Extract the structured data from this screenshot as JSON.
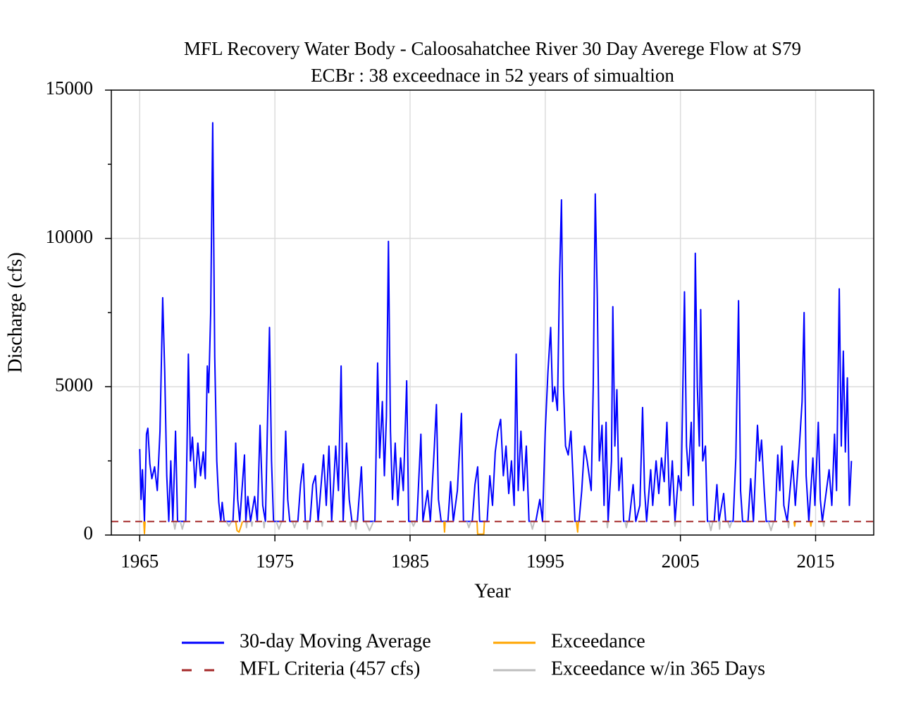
{
  "chart_data": {
    "type": "line",
    "title": "MFL Recovery Water Body - Caloosahatchee River 30 Day Averege Flow at S79",
    "subtitle": "ECBr : 38 exceednace in 52 years of simualtion",
    "x_label": "Year",
    "y_label": "Discharge (cfs)",
    "xlim": [
      1962.9,
      2019.3
    ],
    "ylim": [
      0,
      15000
    ],
    "xticks": [
      1965,
      1975,
      1985,
      1995,
      2005,
      2015
    ],
    "yticks": [
      0,
      5000,
      10000,
      15000
    ],
    "yminorticks": [
      2500,
      7500,
      12500
    ],
    "grid": true,
    "legend": "bottom",
    "threshold": {
      "name": "MFL Criteria (457 cfs)",
      "value": 457,
      "color": "#a52a2a"
    },
    "series": [
      {
        "name": "30-day Moving Average",
        "color": "#0000ff",
        "x": [
          1965.0,
          1965.1,
          1965.2,
          1965.35,
          1965.5,
          1965.6,
          1965.75,
          1965.9,
          1966.1,
          1966.3,
          1966.5,
          1966.7,
          1966.85,
          1967.0,
          1967.15,
          1967.3,
          1967.45,
          1967.65,
          1967.8,
          1968.4,
          1968.5,
          1968.6,
          1968.75,
          1968.9,
          1969.1,
          1969.3,
          1969.5,
          1969.7,
          1969.85,
          1970.0,
          1970.1,
          1970.25,
          1970.4,
          1970.55,
          1970.7,
          1970.85,
          1971.0,
          1971.1,
          1971.25,
          1971.9,
          1972.0,
          1972.1,
          1972.25,
          1972.4,
          1972.75,
          1972.85,
          1973.0,
          1973.2,
          1973.5,
          1973.7,
          1973.9,
          1974.1,
          1974.3,
          1974.6,
          1974.75,
          1974.9,
          1975.6,
          1975.8,
          1975.95,
          1976.1,
          1976.7,
          1976.9,
          1977.1,
          1977.25,
          1977.6,
          1977.8,
          1978.0,
          1978.2,
          1978.6,
          1978.8,
          1979.0,
          1979.2,
          1979.5,
          1979.7,
          1979.9,
          1980.05,
          1980.3,
          1980.5,
          1980.7,
          1981.1,
          1981.4,
          1981.55,
          1982.4,
          1982.6,
          1982.75,
          1982.95,
          1983.1,
          1983.25,
          1983.4,
          1983.55,
          1983.7,
          1983.9,
          1984.1,
          1984.3,
          1984.5,
          1984.75,
          1984.9,
          1985.5,
          1985.8,
          1985.95,
          1986.3,
          1986.5,
          1986.8,
          1986.95,
          1987.1,
          1987.3,
          1987.8,
          1988.0,
          1988.2,
          1988.5,
          1988.8,
          1988.95,
          1989.6,
          1989.8,
          1990.0,
          1990.15,
          1990.7,
          1990.9,
          1991.1,
          1991.3,
          1991.5,
          1991.7,
          1991.9,
          1992.1,
          1992.3,
          1992.5,
          1992.7,
          1992.85,
          1993.0,
          1993.2,
          1993.4,
          1993.6,
          1993.8,
          1994.3,
          1994.6,
          1994.8,
          1995.0,
          1995.2,
          1995.4,
          1995.55,
          1995.7,
          1995.9,
          1996.05,
          1996.2,
          1996.35,
          1996.5,
          1996.7,
          1996.9,
          1997.05,
          1997.2,
          1997.5,
          1997.7,
          1997.9,
          1998.1,
          1998.4,
          1998.55,
          1998.7,
          1998.85,
          1999.0,
          1999.2,
          1999.35,
          1999.5,
          1999.65,
          1999.9,
          2000.0,
          2000.15,
          2000.3,
          2000.45,
          2000.65,
          2000.8,
          2001.2,
          2001.5,
          2001.7,
          2002.0,
          2002.2,
          2002.35,
          2002.5,
          2002.8,
          2002.95,
          2003.2,
          2003.4,
          2003.6,
          2003.8,
          2004.0,
          2004.2,
          2004.4,
          2004.6,
          2004.85,
          2005.05,
          2005.3,
          2005.45,
          2005.6,
          2005.8,
          2005.95,
          2006.1,
          2006.25,
          2006.4,
          2006.5,
          2006.65,
          2006.85,
          2007.0,
          2007.5,
          2007.7,
          2007.85,
          2008.2,
          2008.35,
          2008.9,
          2009.1,
          2009.3,
          2009.45,
          2009.6,
          2010.0,
          2010.2,
          2010.4,
          2010.7,
          2010.85,
          2011.0,
          2011.2,
          2011.35,
          2012.0,
          2012.2,
          2012.35,
          2012.5,
          2012.65,
          2012.9,
          2013.3,
          2013.5,
          2013.8,
          2014.0,
          2014.15,
          2014.3,
          2014.5,
          2014.8,
          2014.95,
          2015.2,
          2015.35,
          2015.5,
          2015.8,
          2016.0,
          2016.2,
          2016.4,
          2016.55,
          2016.75,
          2016.9,
          2017.05,
          2017.2,
          2017.35,
          2017.5,
          2017.65
        ],
        "values": [
          2900,
          1200,
          2200,
          460,
          3400,
          3600,
          2400,
          1900,
          2300,
          1500,
          3500,
          8000,
          5500,
          2000,
          460,
          2500,
          460,
          3500,
          460,
          460,
          3000,
          6100,
          2500,
          3300,
          1600,
          3100,
          2000,
          2800,
          1900,
          5700,
          4800,
          7500,
          13900,
          6000,
          2500,
          1100,
          460,
          1100,
          460,
          460,
          1500,
          3100,
          1200,
          460,
          2700,
          460,
          1300,
          460,
          1300,
          460,
          3700,
          1000,
          460,
          7000,
          2500,
          460,
          460,
          3500,
          1200,
          460,
          460,
          1700,
          2400,
          460,
          460,
          1700,
          2000,
          460,
          2700,
          1000,
          3000,
          460,
          3000,
          1500,
          5700,
          460,
          3100,
          1200,
          460,
          460,
          2300,
          460,
          460,
          5800,
          2600,
          4500,
          2000,
          4000,
          9900,
          3500,
          1200,
          3100,
          1000,
          2600,
          1500,
          5200,
          460,
          460,
          3400,
          460,
          1500,
          460,
          3000,
          4400,
          1200,
          460,
          460,
          1800,
          460,
          1500,
          4100,
          460,
          460,
          1700,
          2300,
          460,
          460,
          2000,
          1000,
          2800,
          3500,
          3900,
          2000,
          3000,
          1400,
          2500,
          1000,
          6100,
          1500,
          3500,
          1500,
          3000,
          460,
          460,
          1200,
          460,
          3500,
          5500,
          7000,
          4500,
          5000,
          4200,
          8500,
          11300,
          5000,
          3000,
          2700,
          3500,
          2000,
          460,
          460,
          1500,
          3000,
          2500,
          1500,
          5000,
          11500,
          8000,
          2500,
          3700,
          1000,
          3800,
          460,
          2500,
          7700,
          3000,
          4900,
          1500,
          2600,
          460,
          460,
          1700,
          460,
          1000,
          4300,
          1500,
          460,
          2200,
          1000,
          2500,
          1400,
          2600,
          1800,
          3800,
          1000,
          2500,
          460,
          2000,
          1500,
          8200,
          3000,
          2000,
          3800,
          1000,
          9500,
          5000,
          3000,
          7600,
          2500,
          3000,
          460,
          460,
          1700,
          460,
          1400,
          460,
          460,
          2600,
          7900,
          1500,
          460,
          460,
          1900,
          460,
          3700,
          2500,
          3200,
          1500,
          460,
          460,
          2700,
          1500,
          3000,
          1000,
          460,
          2500,
          1000,
          3000,
          4500,
          7500,
          2000,
          460,
          2600,
          1000,
          3800,
          1200,
          460,
          1500,
          2200,
          1000,
          3400,
          1500,
          8300,
          3000,
          6200,
          2800,
          5300,
          1000,
          2500
        ]
      },
      {
        "name": "Exceedance",
        "color": "#ffa500",
        "x": [
          1965.3,
          1965.35,
          1965.4,
          null,
          1972.1,
          1972.2,
          1972.35,
          1972.5,
          1972.6,
          null,
          1987.5,
          1987.55,
          1987.6,
          null,
          1989.95,
          1990.0,
          1990.3,
          1990.45,
          1990.5,
          null,
          1997.3,
          1997.4,
          1997.45,
          null,
          2013.4,
          2013.45,
          2013.5,
          null,
          2014.6,
          2014.65,
          2014.7
        ],
        "values": [
          460,
          50,
          460,
          null,
          460,
          150,
          100,
          300,
          460,
          null,
          460,
          100,
          460,
          null,
          460,
          30,
          30,
          30,
          460,
          null,
          460,
          100,
          460,
          null,
          460,
          300,
          460,
          null,
          460,
          300,
          460
        ]
      },
      {
        "name": "Exceedance w/in 365 Days",
        "color": "#bebebe",
        "x": [
          1967.5,
          1967.6,
          1967.7,
          null,
          1968.0,
          1968.15,
          1968.3,
          null,
          1971.4,
          1971.6,
          1971.8,
          null,
          1972.85,
          1972.9,
          1972.95,
          null,
          1973.25,
          1973.3,
          1973.35,
          null,
          1974.15,
          1974.2,
          1974.25,
          null,
          1975.1,
          1975.3,
          1975.5,
          null,
          1976.3,
          1976.45,
          1976.6,
          null,
          1977.35,
          1977.4,
          1977.45,
          null,
          1978.45,
          1978.5,
          1978.55,
          null,
          1980.55,
          1980.6,
          1980.65,
          null,
          1980.9,
          1981.0,
          1981.05,
          null,
          1981.7,
          1982.0,
          1982.3,
          null,
          1985.1,
          1985.25,
          1985.4,
          null,
          1989.2,
          1989.35,
          1989.5,
          null,
          1993.9,
          1994.05,
          1994.2,
          null,
          1999.55,
          1999.6,
          1999.65,
          null,
          2000.9,
          2001.0,
          2001.1,
          null,
          2004.55,
          2004.6,
          2004.65,
          null,
          2007.1,
          2007.25,
          2007.4,
          null,
          2007.85,
          2007.9,
          2007.95,
          null,
          2008.5,
          2008.65,
          2008.8,
          null,
          2011.5,
          2011.7,
          2011.9,
          null,
          2012.95,
          2013.0,
          2013.05,
          null,
          2015.55,
          2015.6,
          2015.65
        ],
        "values": [
          460,
          200,
          460,
          null,
          460,
          200,
          460,
          null,
          460,
          300,
          460,
          null,
          460,
          250,
          460,
          null,
          460,
          300,
          460,
          null,
          460,
          250,
          460,
          null,
          460,
          200,
          460,
          null,
          460,
          250,
          460,
          null,
          460,
          200,
          460,
          null,
          460,
          300,
          460,
          null,
          460,
          300,
          460,
          null,
          460,
          200,
          460,
          null,
          460,
          150,
          460,
          null,
          460,
          300,
          460,
          null,
          460,
          250,
          460,
          null,
          460,
          200,
          460,
          null,
          460,
          250,
          460,
          null,
          460,
          250,
          460,
          null,
          460,
          300,
          460,
          null,
          460,
          150,
          460,
          null,
          460,
          200,
          460,
          null,
          460,
          250,
          460,
          null,
          460,
          150,
          460,
          null,
          460,
          250,
          460,
          null,
          460,
          300,
          460
        ]
      }
    ]
  }
}
